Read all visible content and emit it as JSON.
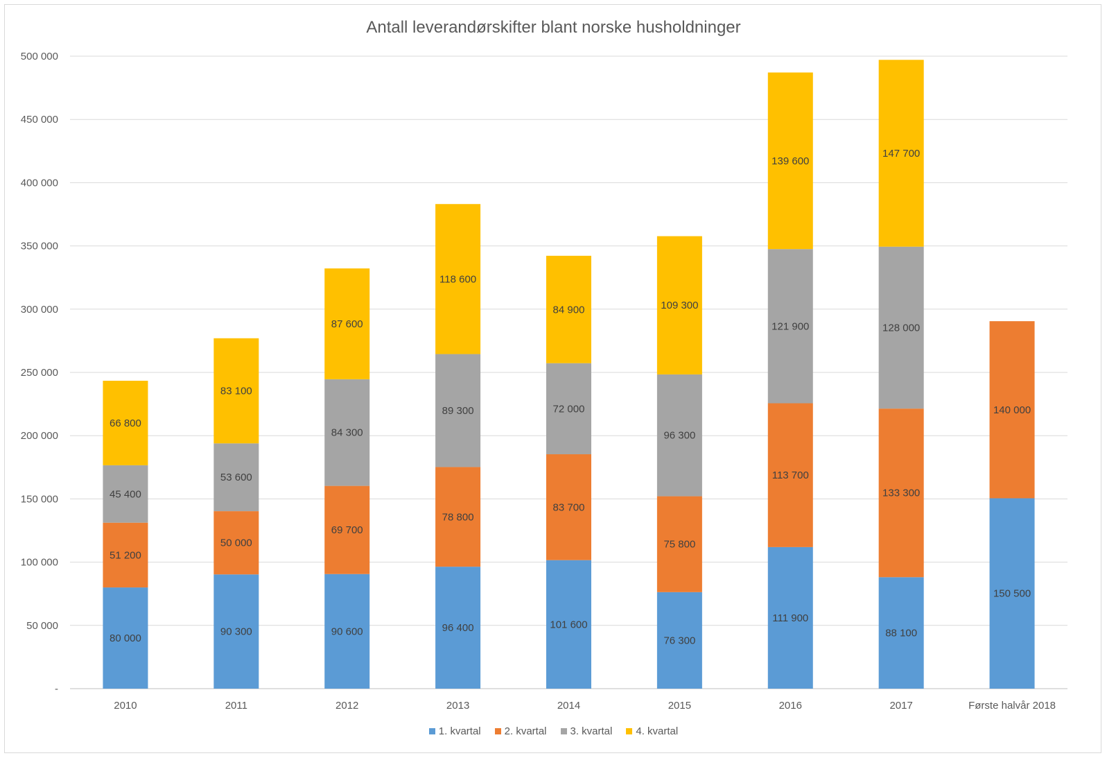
{
  "chart_data": {
    "type": "bar",
    "stacked": true,
    "title": "Antall leverandørskifter blant norske husholdninger",
    "categories": [
      "2010",
      "2011",
      "2012",
      "2013",
      "2014",
      "2015",
      "2016",
      "2017",
      "Første halvår 2018"
    ],
    "series": [
      {
        "name": "1. kvartal",
        "color": "#5B9BD5",
        "values": [
          80000,
          90300,
          90600,
          96400,
          101600,
          76300,
          111900,
          88100,
          150500
        ],
        "labels": [
          "80 000",
          "90 300",
          "90 600",
          "96 400",
          "101 600",
          "76 300",
          "111 900",
          "88 100",
          "150 500"
        ]
      },
      {
        "name": "2. kvartal",
        "color": "#ED7D31",
        "values": [
          51200,
          50000,
          69700,
          78800,
          83700,
          75800,
          113700,
          133300,
          140000
        ],
        "labels": [
          "51 200",
          "50 000",
          "69 700",
          "78 800",
          "83 700",
          "75 800",
          "113 700",
          "133 300",
          "140 000"
        ]
      },
      {
        "name": "3. kvartal",
        "color": "#A5A5A5",
        "values": [
          45400,
          53600,
          84300,
          89300,
          72000,
          96300,
          121900,
          128000,
          null
        ],
        "labels": [
          "45 400",
          "53 600",
          "84 300",
          "89 300",
          "72 000",
          "96 300",
          "121 900",
          "128 000",
          null
        ]
      },
      {
        "name": "4. kvartal",
        "color": "#FFC000",
        "values": [
          66800,
          83100,
          87600,
          118600,
          84900,
          109300,
          139600,
          147700,
          null
        ],
        "labels": [
          "66 800",
          "83 100",
          "87 600",
          "118 600",
          "84 900",
          "109 300",
          "139 600",
          "147 700",
          null
        ]
      }
    ],
    "ylim": [
      0,
      500000
    ],
    "yticks": [
      0,
      50000,
      100000,
      150000,
      200000,
      250000,
      300000,
      350000,
      400000,
      450000,
      500000
    ],
    "ytick_labels": [
      "-",
      "50 000",
      "100 000",
      "150 000",
      "200 000",
      "250 000",
      "300 000",
      "350 000",
      "400 000",
      "450 000",
      "500 000"
    ],
    "grid": true,
    "legend_position": "bottom"
  }
}
